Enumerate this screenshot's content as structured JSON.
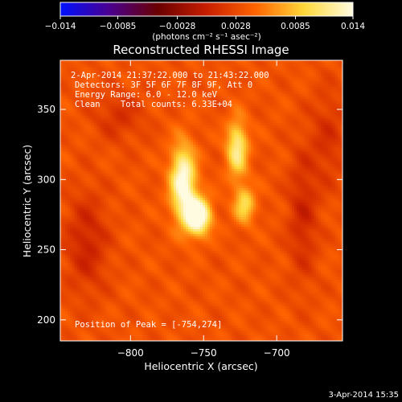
{
  "chart_data": {
    "type": "heatmap",
    "title": "Reconstructed RHESSI Image",
    "xlabel": "Heliocentric X (arcsec)",
    "ylabel": "Heliocentric Y (arcsec)",
    "xlim": [
      -848,
      -655
    ],
    "ylim": [
      185,
      385
    ],
    "x_ticks": [
      -800,
      -750,
      -700
    ],
    "x_tick_labels": [
      "−800",
      "−750",
      "−700"
    ],
    "y_ticks": [
      200,
      250,
      300,
      350
    ],
    "y_tick_labels": [
      "200",
      "250",
      "300",
      "350"
    ],
    "colorbar": {
      "range": [
        -0.014,
        0.014
      ],
      "ticks": [
        -0.014,
        -0.0085,
        -0.0028,
        0.0028,
        0.0085,
        0.014
      ],
      "tick_labels": [
        "−0.014",
        "−0.0085",
        "−0.0028",
        "0.0028",
        "0.0085",
        "0.014"
      ],
      "label": "(photons cm⁻² s⁻¹ asec⁻²)",
      "colormap": [
        "#0010ff",
        "#4a0090",
        "#6a0000",
        "#c81e00",
        "#ff6400",
        "#ffd83a",
        "#fffbe0"
      ]
    },
    "annotations": {
      "time_range": "2-Apr-2014 21:37:22.000 to 21:43:22.000",
      "detectors": "Detectors: 3F 5F 6F 7F 8F 9F, Att 0",
      "energy": "Energy Range: 6.0 - 12.0 keV",
      "method_counts": "Clean    Total counts: 6.33E+04",
      "peak": "Position of Peak = [-754,274]"
    },
    "peak_position": [
      -754,
      274
    ],
    "sources": [
      {
        "x": -754,
        "y": 274,
        "sigma_x": 6,
        "sigma_y": 9,
        "amp": 0.014
      },
      {
        "x": -764,
        "y": 298,
        "sigma_x": 6,
        "sigma_y": 18,
        "amp": 0.0115
      },
      {
        "x": -727,
        "y": 322,
        "sigma_x": 5,
        "sigma_y": 14,
        "amp": 0.0085
      },
      {
        "x": -722,
        "y": 282,
        "sigma_x": 5,
        "sigma_y": 9,
        "amp": 0.0065
      }
    ],
    "background_level": 0.0035,
    "dark_features": [
      {
        "x": -830,
        "y": 255,
        "sigma_x": 10,
        "sigma_y": 25,
        "amp": -0.0032
      },
      {
        "x": -808,
        "y": 345,
        "sigma_x": 12,
        "sigma_y": 12,
        "amp": -0.0022
      },
      {
        "x": -682,
        "y": 275,
        "sigma_x": 7,
        "sigma_y": 32,
        "amp": -0.003
      },
      {
        "x": -665,
        "y": 330,
        "sigma_x": 8,
        "sigma_y": 25,
        "amp": -0.0022
      }
    ]
  },
  "footer": {
    "date_stamp": "3-Apr-2014 15:35"
  }
}
